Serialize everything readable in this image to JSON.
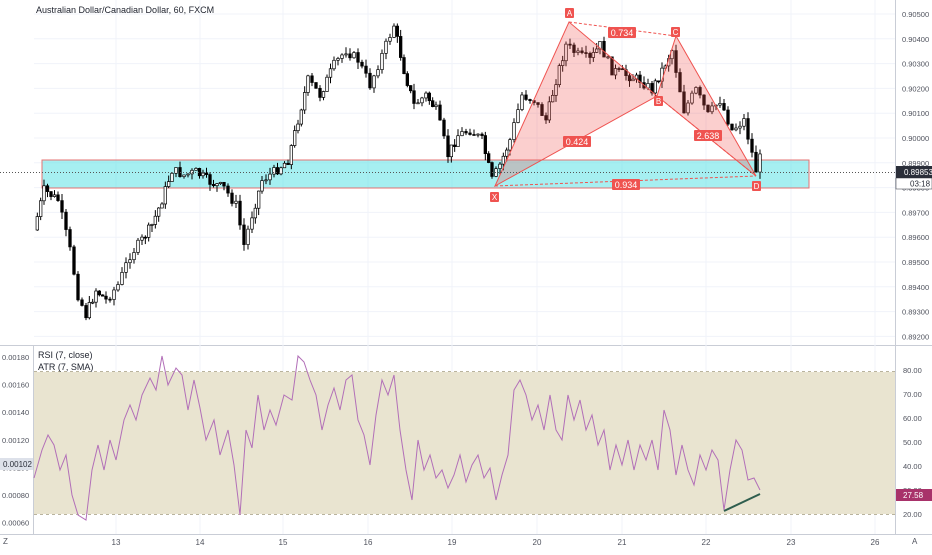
{
  "main_pane": {
    "title": "Australian Dollar/Canadian Dollar, 60, FXCM",
    "last_price": "0.89853",
    "countdown": "03:18",
    "y_ticks": [
      "0.90500",
      "0.90400",
      "0.90300",
      "0.90200",
      "0.90100",
      "0.90000",
      "0.89900",
      "0.89800",
      "0.89700",
      "0.89600",
      "0.89500",
      "0.89400",
      "0.89300",
      "0.89200"
    ],
    "pattern_points": {
      "X": "X",
      "A": "A",
      "B": "B",
      "C": "C",
      "D": "D"
    },
    "ratios": {
      "xb": "0.424",
      "ac": "0.734",
      "bd": "2.638",
      "xd": "0.934"
    },
    "colors": {
      "pattern": "#ef5350",
      "zone": "#5ce1e6",
      "zone_border": "#e57373",
      "up": "#ffffff",
      "down": "#000000"
    }
  },
  "lower_pane": {
    "rsi_label": "RSI (7, close)",
    "atr_label": "ATR (7, SMA)",
    "atr_value": "0.00102",
    "rsi_value": "27.58",
    "left_ticks": [
      "0.00180",
      "0.00160",
      "0.00140",
      "0.00120",
      "0.00100",
      "0.00080",
      "0.00060"
    ],
    "right_ticks": [
      "80.00",
      "70.00",
      "60.00",
      "50.00",
      "40.00",
      "30.00",
      "20.00"
    ],
    "colors": {
      "rsi_line": "#b26fb8",
      "band": "#e9e4d0",
      "divergence": "#2f5e4e",
      "rsi_badge": "#a8326a"
    }
  },
  "x_axis": {
    "ticks": [
      "13",
      "14",
      "15",
      "16",
      "19",
      "20",
      "21",
      "22",
      "23",
      "26"
    ],
    "left_label": "Z",
    "right_label": "A"
  },
  "chart_data": [
    {
      "type": "candlestick",
      "title": "Australian Dollar/Canadian Dollar, 60, FXCM",
      "ylim": [
        0.8917,
        0.9055
      ],
      "x_ticks": [
        "13",
        "14",
        "15",
        "16",
        "19",
        "20",
        "21",
        "22",
        "23",
        "26"
      ],
      "pattern": {
        "name": "XABCD",
        "points": {
          "X": 0.8978,
          "A": 0.9046,
          "B": 0.9018,
          "C": 0.9038,
          "D": 0.898
        },
        "ratios": {
          "XB": 0.424,
          "AC": 0.734,
          "BD": 2.638,
          "XD": 0.934
        }
      },
      "zone": [
        0.8979,
        0.899
      ],
      "last_price": 0.89853
    },
    {
      "type": "line",
      "series": [
        {
          "name": "RSI (7, close)"
        },
        {
          "name": "ATR (7, SMA)"
        }
      ],
      "rsi_band": [
        20,
        80
      ],
      "last_rsi": 27.58,
      "last_atr": 0.00102,
      "ylim_right": [
        15,
        85
      ]
    }
  ]
}
